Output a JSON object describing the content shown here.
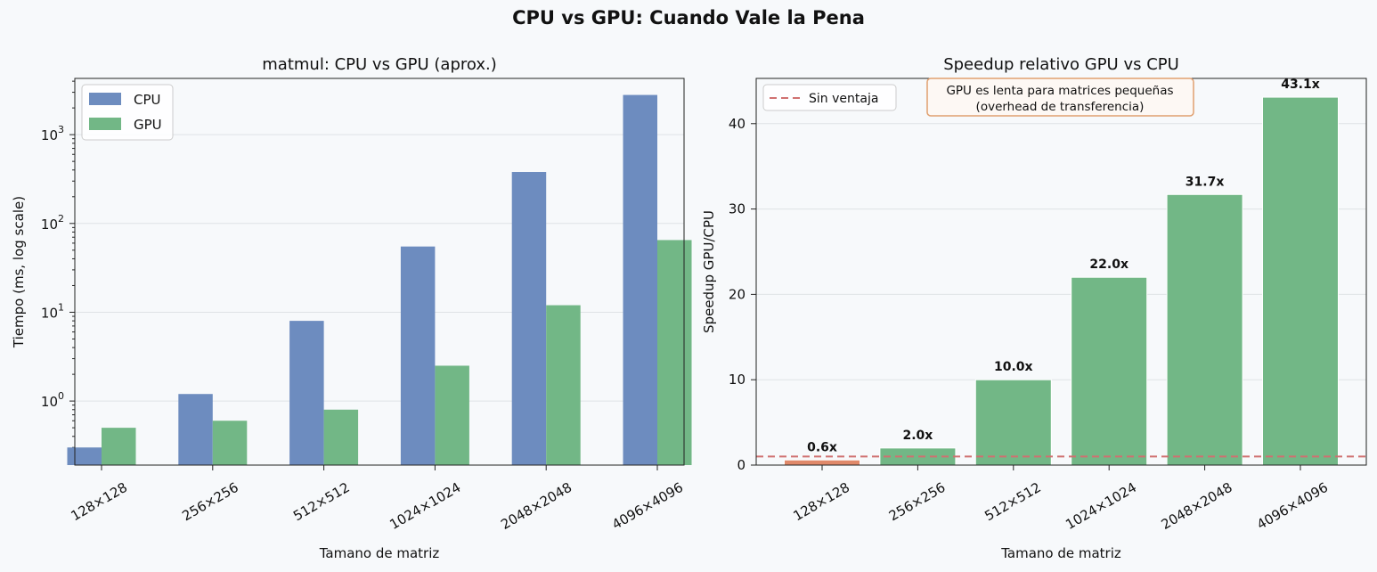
{
  "figure_title": "CPU vs GPU: Cuando Vale la Pena",
  "colors": {
    "cpu": "#6d8cbf",
    "gpu": "#72b786",
    "slow": "#e0896a",
    "line": "#d07070",
    "background": "#f7f9fb"
  },
  "chart_data": [
    {
      "type": "bar",
      "title": "matmul: CPU vs GPU (aprox.)",
      "xlabel": "Tamano de matriz",
      "ylabel": "Tiempo (ms, log scale)",
      "yscale": "log",
      "ylim": [
        0.19,
        4300
      ],
      "yticks": [
        1,
        10,
        100,
        1000
      ],
      "ytick_labels": [
        {
          "base": "10",
          "exp": "0"
        },
        {
          "base": "10",
          "exp": "1"
        },
        {
          "base": "10",
          "exp": "2"
        },
        {
          "base": "10",
          "exp": "3"
        }
      ],
      "categories": [
        "128×128",
        "256×256",
        "512×512",
        "1024×1024",
        "2048×2048",
        "4096×4096"
      ],
      "series": [
        {
          "name": "CPU",
          "values": [
            0.3,
            1.2,
            8,
            55,
            380,
            2800
          ],
          "color": "#6d8cbf"
        },
        {
          "name": "GPU",
          "values": [
            0.5,
            0.6,
            0.8,
            2.5,
            12,
            65
          ],
          "color": "#72b786"
        }
      ],
      "legend": "top-left",
      "grid": "y"
    },
    {
      "type": "bar",
      "title": "Speedup relativo GPU vs CPU",
      "xlabel": "Tamano de matriz",
      "ylabel": "Speedup GPU/CPU",
      "ylim": [
        0,
        45.3
      ],
      "yticks": [
        0,
        10,
        20,
        30,
        40
      ],
      "categories": [
        "128×128",
        "256×256",
        "512×512",
        "1024×1024",
        "2048×2048",
        "4096×4096"
      ],
      "values": [
        0.6,
        2.0,
        10.0,
        22.0,
        31.7,
        43.1
      ],
      "value_labels": [
        "0.6x",
        "2.0x",
        "10.0x",
        "22.0x",
        "31.7x",
        "43.1x"
      ],
      "bar_colors": [
        "#e0896a",
        "#72b786",
        "#72b786",
        "#72b786",
        "#72b786",
        "#72b786"
      ],
      "reference_line": {
        "y": 1,
        "label": "Sin ventaja",
        "color": "#d07070"
      },
      "annotation": [
        "GPU es lenta para matrices pequeñas",
        "(overhead de transferencia)"
      ],
      "legend": "top-left",
      "grid": "y"
    }
  ]
}
